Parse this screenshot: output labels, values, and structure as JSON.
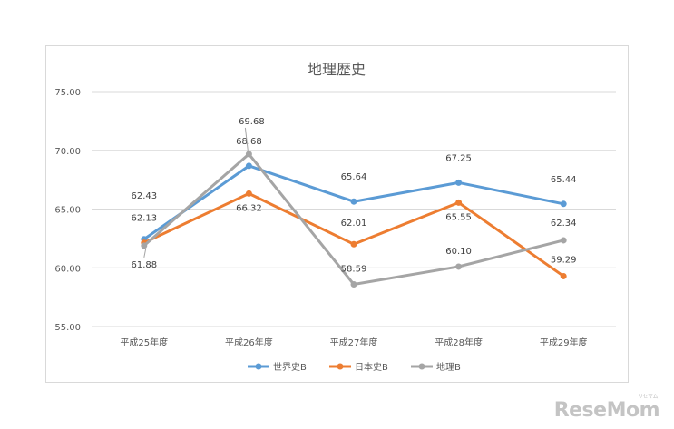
{
  "chart_data": {
    "type": "line",
    "title": "地理歴史",
    "categories": [
      "平成25年度",
      "平成26年度",
      "平成27年度",
      "平成28年度",
      "平成29年度"
    ],
    "ylim": [
      55,
      75
    ],
    "yticks": [
      "55.00",
      "60.00",
      "65.00",
      "70.00",
      "75.00"
    ],
    "grid": true,
    "legend_position": "bottom",
    "series": [
      {
        "name": "世界史B",
        "color": "#5b9bd5",
        "values": [
          62.43,
          68.68,
          65.64,
          67.25,
          65.44
        ],
        "labels": [
          "62.43",
          "68.68",
          "65.64",
          "67.25",
          "65.44"
        ]
      },
      {
        "name": "日本史B",
        "color": "#ed7d31",
        "values": [
          62.13,
          66.32,
          62.01,
          65.55,
          59.29
        ],
        "labels": [
          "62.13",
          "66.32",
          "62.01",
          "65.55",
          "59.29"
        ]
      },
      {
        "name": "地理B",
        "color": "#a5a5a5",
        "values": [
          61.88,
          69.68,
          58.59,
          60.1,
          62.34
        ],
        "labels": [
          "61.88",
          "69.68",
          "58.59",
          "60.10",
          "62.34"
        ]
      }
    ]
  },
  "watermark": {
    "text": "ReseMom",
    "sub": "リセマム"
  }
}
